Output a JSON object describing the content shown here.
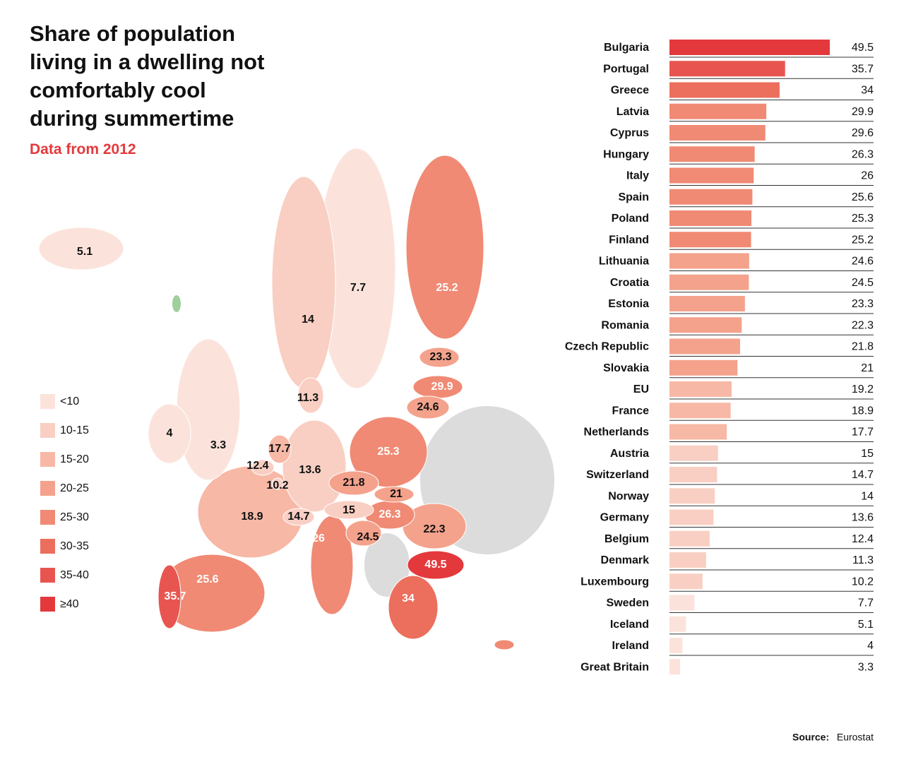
{
  "chart_data": {
    "type": "bar",
    "title": "Share of population living in a dwelling not comfortably cool during summertime",
    "subtitle": "Data from 2012",
    "source_label": "Source:",
    "source": "Eurostat",
    "categories": [
      "Bulgaria",
      "Portugal",
      "Greece",
      "Latvia",
      "Cyprus",
      "Hungary",
      "Italy",
      "Spain",
      "Poland",
      "Finland",
      "Lithuania",
      "Croatia",
      "Estonia",
      "Romania",
      "Czech Republic",
      "Slovakia",
      "EU",
      "France",
      "Netherlands",
      "Austria",
      "Switzerland",
      "Norway",
      "Germany",
      "Belgium",
      "Denmark",
      "Luxembourg",
      "Sweden",
      "Iceland",
      "Ireland",
      "Great Britain"
    ],
    "values": [
      49.5,
      35.7,
      34,
      29.9,
      29.6,
      26.3,
      26,
      25.6,
      25.3,
      25.2,
      24.6,
      24.5,
      23.3,
      22.3,
      21.8,
      21,
      19.2,
      18.9,
      17.7,
      15,
      14.7,
      14,
      13.6,
      12.4,
      11.3,
      10.2,
      7.7,
      5.1,
      4,
      3.3
    ],
    "colors": [
      "#e3393c",
      "#e85550",
      "#ec6e5c",
      "#f08a74",
      "#f08a74",
      "#f08a74",
      "#f08a74",
      "#f08a74",
      "#f08a74",
      "#f08a74",
      "#f4a28c",
      "#f4a28c",
      "#f4a28c",
      "#f4a28c",
      "#f4a28c",
      "#f4a28c",
      "#f7b8a6",
      "#f7b8a6",
      "#f7b8a6",
      "#f9cfc3",
      "#f9cfc3",
      "#f9cfc3",
      "#f9cfc3",
      "#f9cfc3",
      "#f9cfc3",
      "#f9cfc3",
      "#fbe3db",
      "#fbe3db",
      "#fbe3db",
      "#fbe3db"
    ],
    "legend": [
      {
        "label": "<10",
        "color": "#fbe3db"
      },
      {
        "label": "10-15",
        "color": "#f9cfc3"
      },
      {
        "label": "15-20",
        "color": "#f7b8a6"
      },
      {
        "label": "20-25",
        "color": "#f4a28c"
      },
      {
        "label": "25-30",
        "color": "#f08a74"
      },
      {
        "label": "30-35",
        "color": "#ec6e5c"
      },
      {
        "label": "35-40",
        "color": "#e85550"
      },
      {
        "label": "≥40",
        "color": "#e3393c"
      }
    ]
  }
}
